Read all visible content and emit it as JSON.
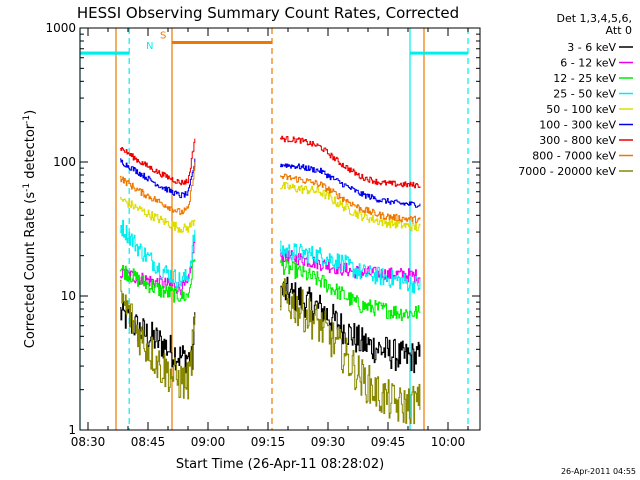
{
  "chart_data": {
    "type": "line",
    "title": "HESSI Observing Summary Count Rates, Corrected",
    "xlabel": "Start Time (26-Apr-11 08:28:02)",
    "ylabel": "Corrected Count Rate (s",
    "ylabel_sup1": "-1",
    "ylabel_mid": " detector",
    "ylabel_sup2": "-1",
    "ylabel_end": ")",
    "yscale": "log",
    "ylim": [
      1,
      1000
    ],
    "xlim_minutes": [
      0,
      100
    ],
    "x_ticks": [
      {
        "label": "08:30",
        "min": 2
      },
      {
        "label": "08:45",
        "min": 17
      },
      {
        "label": "09:00",
        "min": 32
      },
      {
        "label": "09:15",
        "min": 47
      },
      {
        "label": "09:30",
        "min": 62
      },
      {
        "label": "09:45",
        "min": 77
      },
      {
        "label": "10:00",
        "min": 92
      }
    ],
    "y_ticks": [
      {
        "label": "1",
        "v": 1
      },
      {
        "label": "10",
        "v": 10
      },
      {
        "label": "100",
        "v": 100
      },
      {
        "label": "1000",
        "v": 1000
      }
    ],
    "legend_header": [
      "Det 1,3,4,5,6,",
      "Att 0"
    ],
    "legend_position": "right",
    "series": [
      {
        "name": "3 - 6 keV",
        "color": "#000000",
        "seg1": [
          [
            10,
            7.5
          ],
          [
            15,
            5.5
          ],
          [
            20,
            4.5
          ],
          [
            25,
            3.5
          ],
          [
            27,
            3.5
          ],
          [
            28,
            3.2
          ],
          [
            28.8,
            8
          ]
        ],
        "seg2": [
          [
            50,
            11
          ],
          [
            55,
            9.5
          ],
          [
            60,
            8
          ],
          [
            65,
            6
          ],
          [
            70,
            4.5
          ],
          [
            75,
            4
          ],
          [
            80,
            3.5
          ],
          [
            85,
            3.5
          ]
        ]
      },
      {
        "name": "6 - 12 keV",
        "color": "#ee00ee",
        "seg1": [
          [
            10,
            15
          ],
          [
            15,
            13.5
          ],
          [
            20,
            12.5
          ],
          [
            25,
            11.5
          ],
          [
            27,
            12
          ],
          [
            28.8,
            28
          ]
        ],
        "seg2": [
          [
            50,
            20
          ],
          [
            55,
            19
          ],
          [
            60,
            17.5
          ],
          [
            65,
            16
          ],
          [
            70,
            15
          ],
          [
            75,
            14.5
          ],
          [
            80,
            14.5
          ],
          [
            85,
            14
          ]
        ]
      },
      {
        "name": "12 - 25 keV",
        "color": "#00ee00",
        "seg1": [
          [
            10,
            16
          ],
          [
            15,
            13
          ],
          [
            20,
            11
          ],
          [
            25,
            10
          ],
          [
            27,
            10
          ],
          [
            28.8,
            22
          ]
        ],
        "seg2": [
          [
            50,
            17
          ],
          [
            55,
            15
          ],
          [
            60,
            13
          ],
          [
            65,
            10.5
          ],
          [
            70,
            8.5
          ],
          [
            75,
            8
          ],
          [
            80,
            7.5
          ],
          [
            85,
            7.5
          ]
        ]
      },
      {
        "name": "25 - 50 keV",
        "color": "#00eeee",
        "seg1": [
          [
            10,
            34
          ],
          [
            15,
            22
          ],
          [
            20,
            16
          ],
          [
            25,
            13
          ],
          [
            27,
            14
          ],
          [
            28.8,
            32
          ]
        ],
        "seg2": [
          [
            50,
            22
          ],
          [
            55,
            21
          ],
          [
            60,
            20
          ],
          [
            65,
            18
          ],
          [
            70,
            15
          ],
          [
            75,
            14
          ],
          [
            80,
            13
          ],
          [
            85,
            12
          ]
        ]
      },
      {
        "name": "50 - 100 keV",
        "color": "#dddd00",
        "seg1": [
          [
            10,
            53
          ],
          [
            15,
            44
          ],
          [
            20,
            37
          ],
          [
            25,
            32
          ],
          [
            27,
            32
          ],
          [
            28.8,
            38
          ]
        ],
        "seg2": [
          [
            50,
            66
          ],
          [
            55,
            63
          ],
          [
            60,
            60
          ],
          [
            65,
            48
          ],
          [
            70,
            40
          ],
          [
            75,
            36
          ],
          [
            80,
            34
          ],
          [
            85,
            32
          ]
        ]
      },
      {
        "name": "100 - 300 keV",
        "color": "#0000ee",
        "seg1": [
          [
            10,
            102
          ],
          [
            15,
            82
          ],
          [
            20,
            66
          ],
          [
            25,
            56
          ],
          [
            27,
            58
          ],
          [
            28.8,
            105
          ]
        ],
        "seg2": [
          [
            50,
            96
          ],
          [
            55,
            92
          ],
          [
            60,
            86
          ],
          [
            65,
            70
          ],
          [
            70,
            58
          ],
          [
            75,
            52
          ],
          [
            80,
            49
          ],
          [
            85,
            48
          ]
        ]
      },
      {
        "name": "300 - 800 keV",
        "color": "#ee0000",
        "seg1": [
          [
            10,
            128
          ],
          [
            15,
            100
          ],
          [
            20,
            82
          ],
          [
            25,
            70
          ],
          [
            27,
            72
          ],
          [
            28.8,
            160
          ]
        ],
        "seg2": [
          [
            50,
            150
          ],
          [
            55,
            145
          ],
          [
            60,
            130
          ],
          [
            65,
            98
          ],
          [
            70,
            78
          ],
          [
            75,
            70
          ],
          [
            80,
            68
          ],
          [
            85,
            67
          ]
        ]
      },
      {
        "name": "800 - 7000 keV",
        "color": "#ee7700",
        "seg1": [
          [
            10,
            76
          ],
          [
            15,
            60
          ],
          [
            20,
            50
          ],
          [
            25,
            42
          ],
          [
            27,
            44
          ],
          [
            28.8,
            100
          ]
        ],
        "seg2": [
          [
            50,
            78
          ],
          [
            55,
            74
          ],
          [
            60,
            68
          ],
          [
            65,
            55
          ],
          [
            70,
            45
          ],
          [
            75,
            40
          ],
          [
            80,
            38
          ],
          [
            85,
            37
          ]
        ]
      },
      {
        "name": "7000 - 20000 keV",
        "color": "#888800",
        "seg1": [
          [
            10,
            10
          ],
          [
            15,
            5
          ],
          [
            20,
            3
          ],
          [
            25,
            2.3
          ],
          [
            27,
            2.3
          ],
          [
            28.8,
            6
          ]
        ],
        "seg2": [
          [
            50,
            10
          ],
          [
            55,
            8
          ],
          [
            60,
            6
          ],
          [
            65,
            4
          ],
          [
            70,
            2.5
          ],
          [
            75,
            1.8
          ],
          [
            80,
            1.5
          ],
          [
            85,
            1.6
          ]
        ]
      }
    ],
    "flag_bars": [
      {
        "label": "",
        "color": "#00eeee",
        "y_value": 650,
        "x": [
          0,
          12.3
        ]
      },
      {
        "label": "N",
        "color": "#00eeee",
        "y_value": 650,
        "x": [
          0,
          12.3
        ]
      },
      {
        "label": "S",
        "color": "#ee7700",
        "y_value": 780,
        "x": [
          23,
          48
        ]
      },
      {
        "label": "",
        "color": "#00eeee",
        "y_value": 650,
        "x": [
          82.5,
          97
        ]
      }
    ],
    "vlines": [
      {
        "x": 0,
        "color": "#00eeee",
        "style": "solid"
      },
      {
        "x": 12.3,
        "color": "#00eeee",
        "style": "dashed"
      },
      {
        "x": 82.5,
        "color": "#00eeee",
        "style": "solid"
      },
      {
        "x": 97,
        "color": "#00eeee",
        "style": "dashed"
      },
      {
        "x": 9,
        "color": "#ee7700",
        "style": "solid"
      },
      {
        "x": 23,
        "color": "#ee7700",
        "style": "solid"
      },
      {
        "x": 48,
        "color": "#ee7700",
        "style": "dashed"
      },
      {
        "x": 86,
        "color": "#ee7700",
        "style": "solid"
      }
    ],
    "timestamp": "26-Apr-2011 04:55"
  }
}
